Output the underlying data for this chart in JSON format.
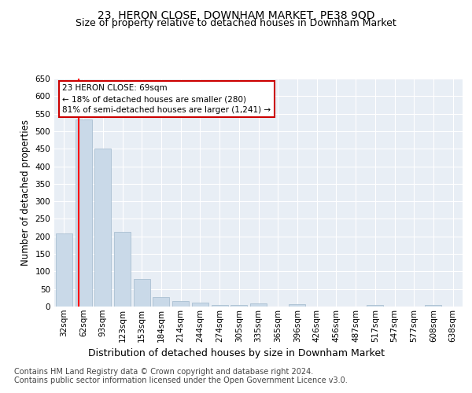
{
  "title": "23, HERON CLOSE, DOWNHAM MARKET, PE38 9QD",
  "subtitle": "Size of property relative to detached houses in Downham Market",
  "xlabel": "Distribution of detached houses by size in Downham Market",
  "ylabel": "Number of detached properties",
  "categories": [
    "32sqm",
    "62sqm",
    "93sqm",
    "123sqm",
    "153sqm",
    "184sqm",
    "214sqm",
    "244sqm",
    "274sqm",
    "305sqm",
    "335sqm",
    "365sqm",
    "396sqm",
    "426sqm",
    "456sqm",
    "487sqm",
    "517sqm",
    "547sqm",
    "577sqm",
    "608sqm",
    "638sqm"
  ],
  "values": [
    208,
    533,
    450,
    212,
    78,
    26,
    15,
    12,
    5,
    5,
    9,
    0,
    6,
    0,
    0,
    0,
    5,
    0,
    0,
    5,
    0
  ],
  "bar_color": "#c9d9e8",
  "bar_edge_color": "#a0b8cc",
  "annotation_text": "23 HERON CLOSE: 69sqm\n← 18% of detached houses are smaller (280)\n81% of semi-detached houses are larger (1,241) →",
  "annotation_box_edge_color": "#cc0000",
  "annotation_box_face_color": "#ffffff",
  "ylim": [
    0,
    650
  ],
  "yticks": [
    0,
    50,
    100,
    150,
    200,
    250,
    300,
    350,
    400,
    450,
    500,
    550,
    600,
    650
  ],
  "footnote": "Contains HM Land Registry data © Crown copyright and database right 2024.\nContains public sector information licensed under the Open Government Licence v3.0.",
  "plot_bg_color": "#e8eef5",
  "title_fontsize": 10,
  "subtitle_fontsize": 9,
  "xlabel_fontsize": 9,
  "ylabel_fontsize": 8.5,
  "footnote_fontsize": 7,
  "tick_fontsize": 7.5
}
